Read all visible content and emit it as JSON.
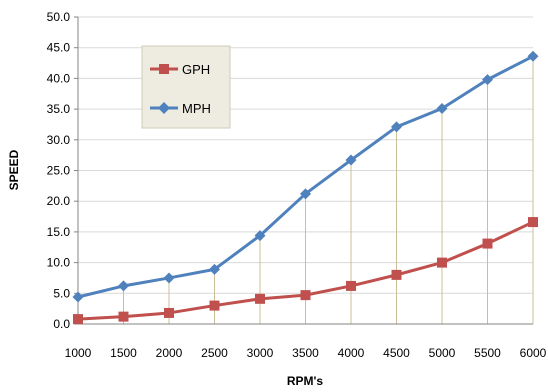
{
  "chart_data": {
    "type": "line",
    "x": [
      1000,
      1500,
      2000,
      2500,
      3000,
      3500,
      4000,
      4500,
      5000,
      5500,
      6000
    ],
    "x_tick_labels": [
      "1000",
      "1500",
      "2000",
      "2500",
      "3000",
      "3500",
      "4000",
      "4500",
      "5000",
      "5500",
      "6000"
    ],
    "y_tick_labels": [
      "0.0",
      "5.0",
      "10.0",
      "15.0",
      "20.0",
      "25.0",
      "30.0",
      "35.0",
      "40.0",
      "45.0",
      "50.0"
    ],
    "series": [
      {
        "name": "GPH",
        "color": "#c0504d",
        "marker": "square",
        "values": [
          0.8,
          1.2,
          1.8,
          3.0,
          4.1,
          4.7,
          6.2,
          8.0,
          10.0,
          13.1,
          16.6
        ]
      },
      {
        "name": "MPH",
        "color": "#4f81bd",
        "marker": "diamond",
        "values": [
          4.4,
          6.2,
          7.5,
          8.9,
          14.4,
          21.2,
          26.7,
          32.1,
          35.1,
          39.8,
          43.6
        ]
      }
    ],
    "title": "",
    "xlabel": "RPM's",
    "ylabel": "SPEED",
    "xlim": [
      1000,
      6000
    ],
    "ylim": [
      0,
      50
    ],
    "y_step": 5,
    "grid": "horizontal",
    "drop_lines": true,
    "legend": "upper-left inside plot",
    "colors": {
      "grid": "#d9d9d9",
      "axis": "#868686",
      "drop_line": "#c9c09a",
      "legend_bg": "#eeece1"
    }
  }
}
